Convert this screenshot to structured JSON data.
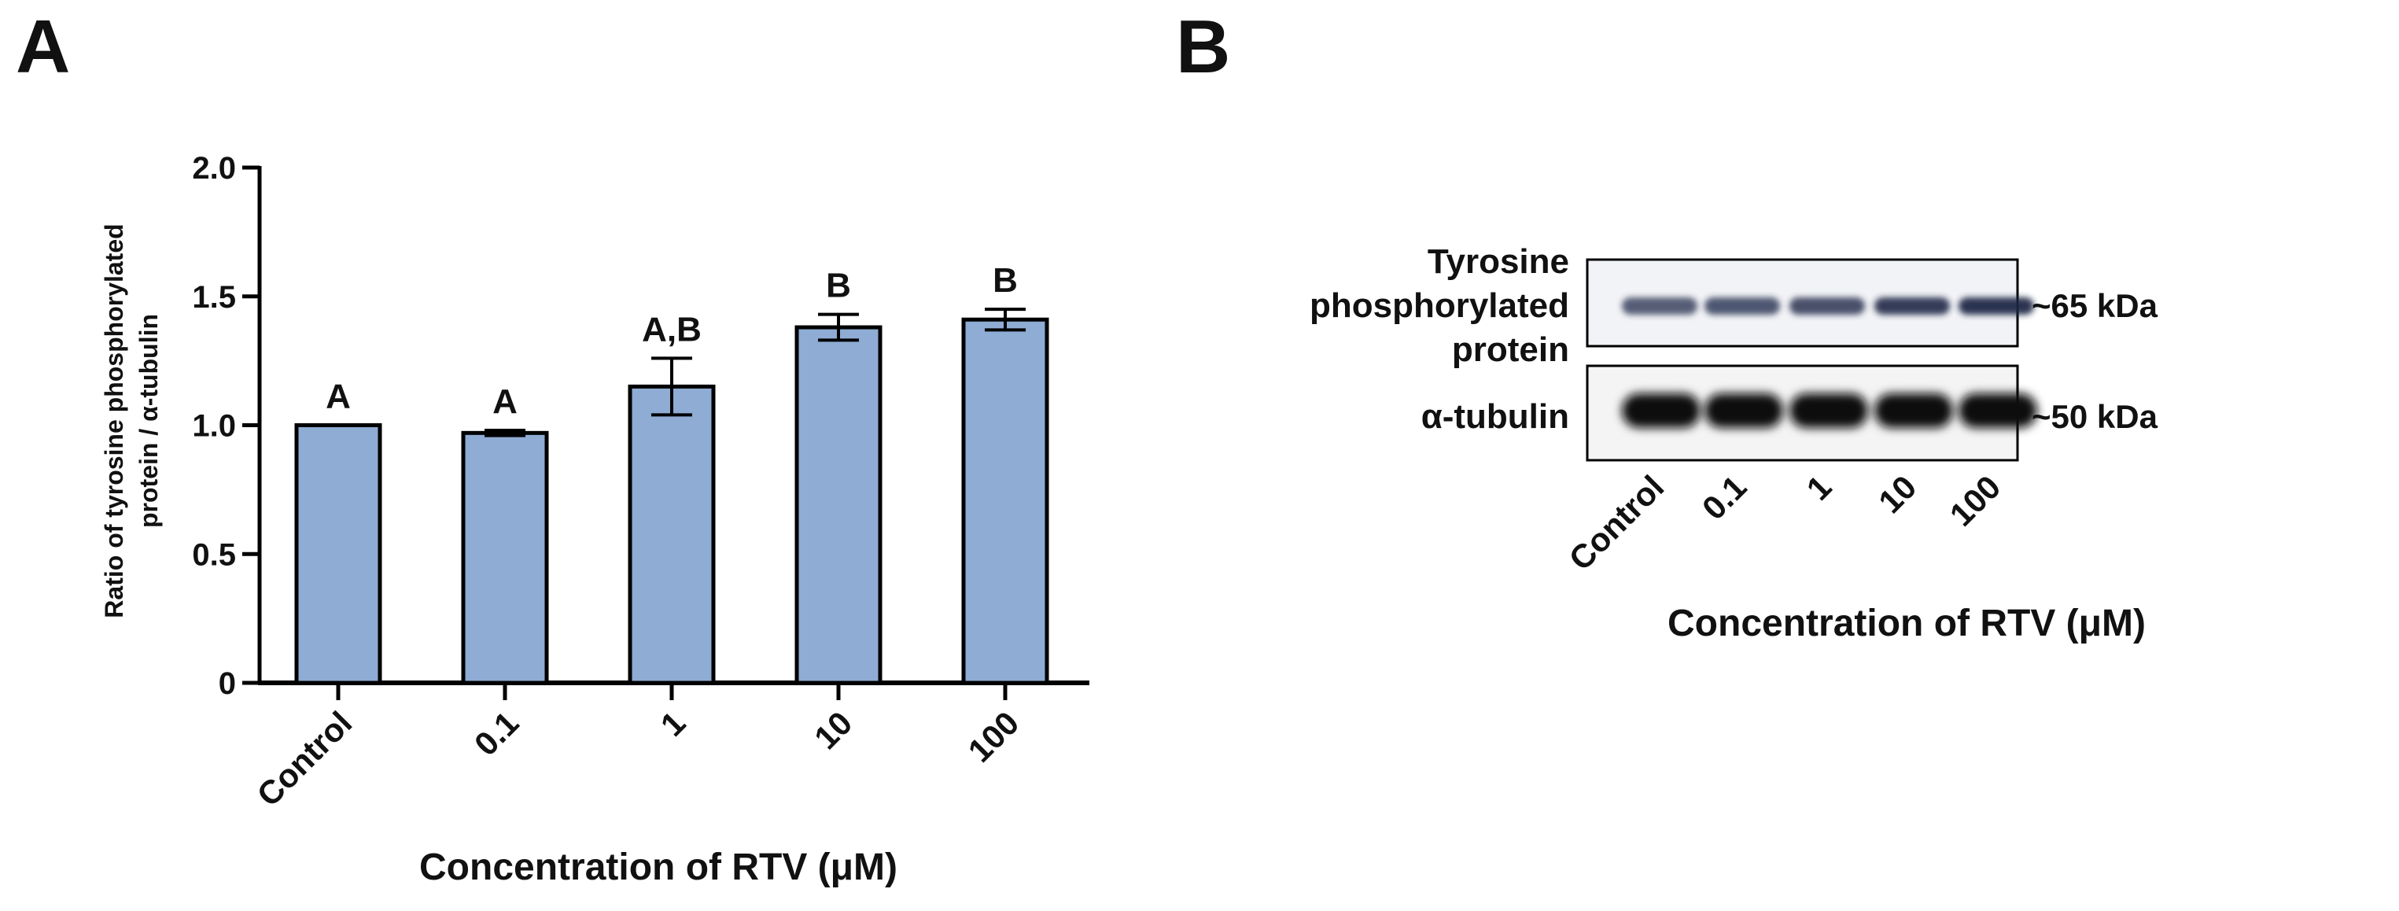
{
  "panels": {
    "a": {
      "label": "A",
      "chart_data": {
        "type": "bar",
        "categories": [
          "Control",
          "0.1",
          "1",
          "10",
          "100"
        ],
        "values": [
          1.0,
          0.97,
          1.15,
          1.38,
          1.41
        ],
        "errors": [
          0.0,
          0.01,
          0.11,
          0.05,
          0.04
        ],
        "significance": [
          "A",
          "A",
          "A,B",
          "B",
          "B"
        ],
        "ylim": [
          0,
          2.0
        ],
        "yticks": [
          "0",
          "0.5",
          "1.0",
          "1.5",
          "2.0"
        ],
        "ytick_values": [
          0,
          0.5,
          1.0,
          1.5,
          2.0
        ],
        "ylabel": [
          "Ratio of tyrosine phosphorylated",
          "protein / α-tubulin"
        ],
        "xlabel": "Concentration of RTV (μM)",
        "grid": false,
        "bar_color": "#8eacd4"
      }
    },
    "b": {
      "label": "B",
      "blot_rows": [
        {
          "label_lines": [
            "Tyrosine",
            "phosphorylated",
            "protein"
          ],
          "size": "~65 kDa",
          "band_intensity": [
            0.55,
            0.6,
            0.65,
            0.8,
            0.85
          ]
        },
        {
          "label_lines": [
            "α-tubulin"
          ],
          "size": "~50 kDa",
          "band_intensity": [
            1,
            1,
            1,
            1,
            1
          ]
        }
      ],
      "lanes": [
        "Control",
        "0.1",
        "1",
        "10",
        "100"
      ],
      "xlabel": "Concentration of RTV (μM)"
    }
  }
}
